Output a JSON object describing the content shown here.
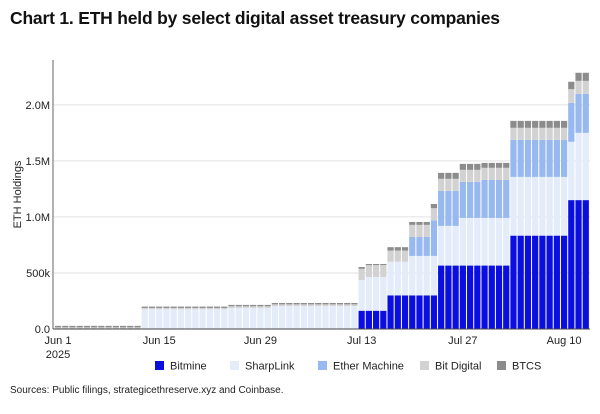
{
  "title": "Chart 1. ETH held by select digital asset treasury companies",
  "sources": "Sources: Public filings, strategicethreserve.xyz and Coinbase.",
  "chart_data": {
    "type": "bar",
    "stacked": true,
    "title": "Chart 1. ETH held by select digital asset treasury companies",
    "ylabel": "ETH Holdings",
    "xlabel": "",
    "ylim": [
      0,
      2400000
    ],
    "yticks": [
      0,
      500000,
      1000000,
      1500000,
      2000000
    ],
    "ytick_labels": [
      "0.0",
      "500k",
      "1.0M",
      "1.5M",
      "2.0M"
    ],
    "xticks": [
      "2025-06-01",
      "2025-06-15",
      "2025-06-29",
      "2025-07-13",
      "2025-07-27",
      "2025-08-10"
    ],
    "xtick_labels": [
      "Jun 1",
      "Jun 15",
      "Jun 29",
      "Jul 13",
      "Jul 27",
      "Aug 10"
    ],
    "xtick_sublabel": "2025",
    "x_range": [
      "2025-06-01",
      "2025-08-13"
    ],
    "grid": "horizontal",
    "legend_placement": "bottom",
    "series_names": [
      "Bitmine",
      "SharpLink",
      "Ether Machine",
      "Bit Digital",
      "BTCS"
    ],
    "colors": [
      "#0a0fe0",
      "#e4ecfa",
      "#98b9f0",
      "#d2d2d2",
      "#8c8c8c"
    ],
    "periods": [
      {
        "start": "2025-06-01",
        "end": "2025-06-12",
        "values": [
          0,
          0,
          0,
          15000,
          13000
        ]
      },
      {
        "start": "2025-06-13",
        "end": "2025-06-24",
        "values": [
          0,
          176000,
          0,
          12000,
          12000
        ]
      },
      {
        "start": "2025-06-25",
        "end": "2025-06-30",
        "values": [
          0,
          188000,
          0,
          15000,
          12000
        ]
      },
      {
        "start": "2025-07-01",
        "end": "2025-07-12",
        "values": [
          0,
          205000,
          0,
          15000,
          12000
        ]
      },
      {
        "start": "2025-07-13",
        "end": "2025-07-13",
        "values": [
          163000,
          274000,
          0,
          100000,
          16000
        ]
      },
      {
        "start": "2025-07-14",
        "end": "2025-07-16",
        "values": [
          163000,
          301000,
          0,
          106000,
          10000
        ]
      },
      {
        "start": "2025-07-17",
        "end": "2025-07-19",
        "values": [
          300000,
          300000,
          0,
          100000,
          30000
        ]
      },
      {
        "start": "2025-07-20",
        "end": "2025-07-22",
        "values": [
          300000,
          352000,
          169000,
          108000,
          26000
        ]
      },
      {
        "start": "2025-07-23",
        "end": "2025-07-23",
        "values": [
          300000,
          352000,
          318000,
          108000,
          37000
        ]
      },
      {
        "start": "2025-07-24",
        "end": "2025-07-26",
        "values": [
          566000,
          354000,
          312000,
          108000,
          53000
        ]
      },
      {
        "start": "2025-07-27",
        "end": "2025-07-29",
        "values": [
          566000,
          425000,
          322000,
          107000,
          53000
        ]
      },
      {
        "start": "2025-07-30",
        "end": "2025-08-02",
        "values": [
          566000,
          425000,
          339000,
          108000,
          44000
        ]
      },
      {
        "start": "2025-08-03",
        "end": "2025-08-10",
        "values": [
          833000,
          524000,
          331000,
          107000,
          62000
        ]
      },
      {
        "start": "2025-08-11",
        "end": "2025-08-11",
        "values": [
          1150000,
          520000,
          348000,
          122000,
          66000
        ]
      },
      {
        "start": "2025-08-12",
        "end": "2025-08-13",
        "values": [
          1150000,
          600000,
          348000,
          116000,
          72000
        ]
      }
    ]
  }
}
